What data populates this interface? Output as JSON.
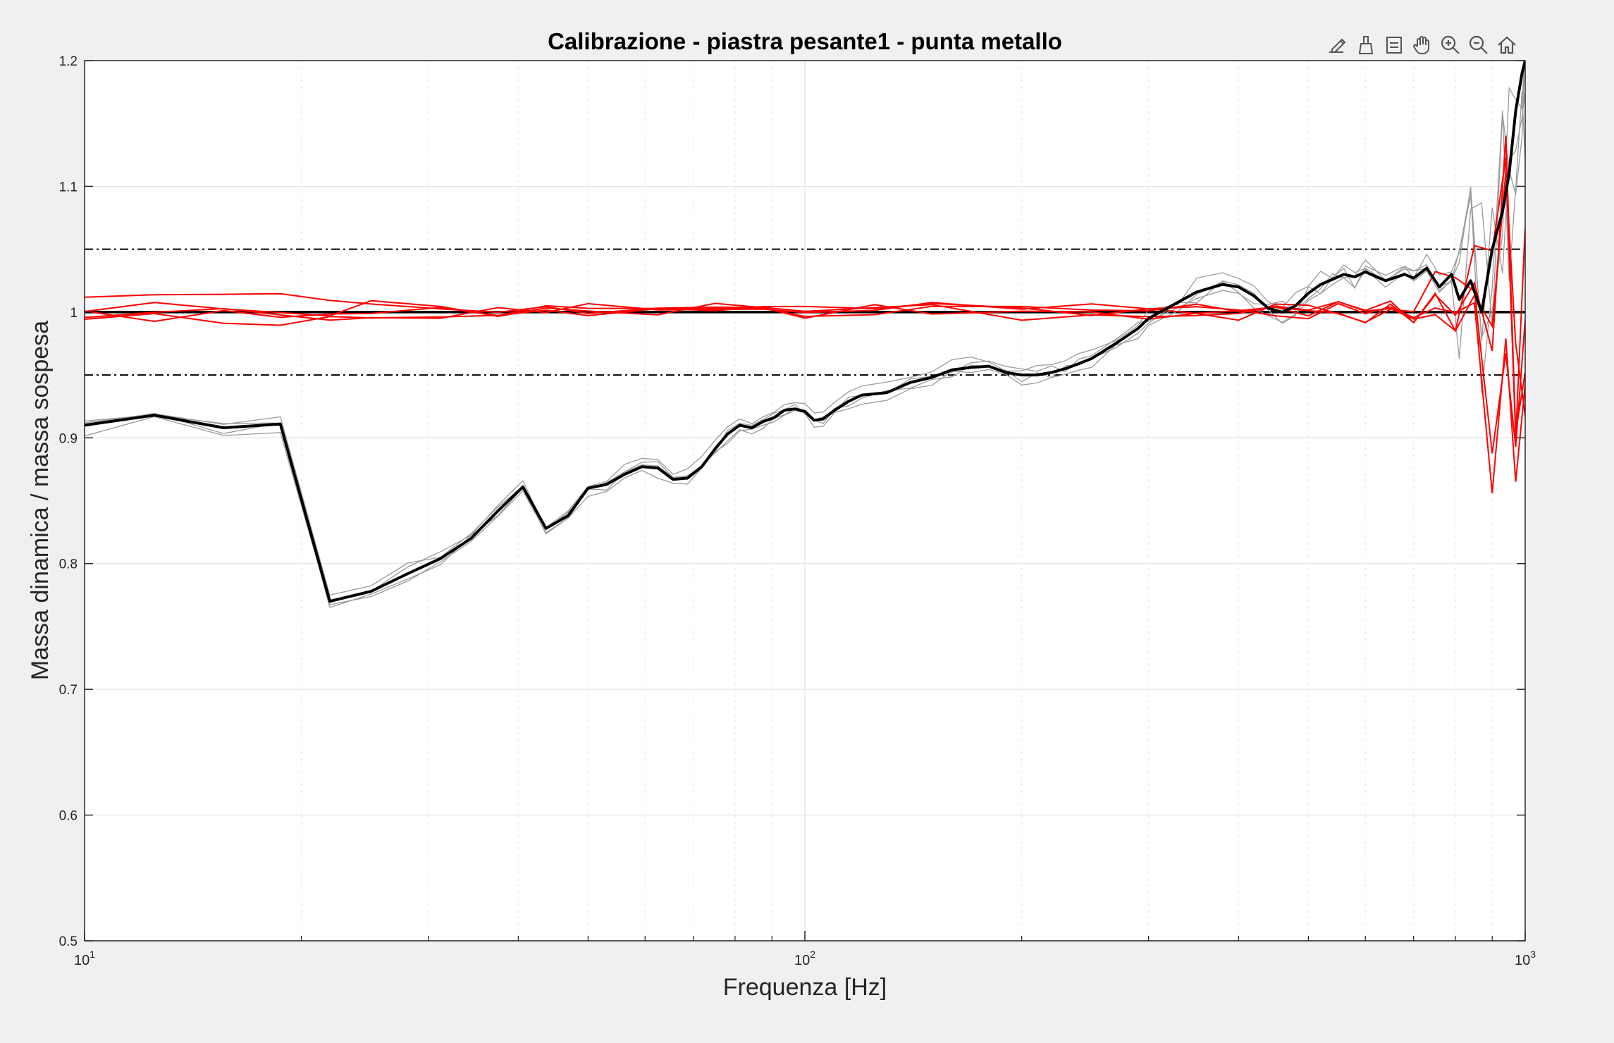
{
  "toolbar": {
    "tools": [
      {
        "name": "export-icon"
      },
      {
        "name": "brush-icon"
      },
      {
        "name": "datatip-icon"
      },
      {
        "name": "pan-hand-icon"
      },
      {
        "name": "zoom-in-icon"
      },
      {
        "name": "zoom-out-icon"
      },
      {
        "name": "home-icon"
      }
    ]
  },
  "chart_data": {
    "type": "line",
    "title": "Calibrazione - piastra pesante1 - punta metallo",
    "xlabel": "Frequenza [Hz]",
    "ylabel": "Massa dinamica / massa sospesa",
    "xscale": "log",
    "xlim": [
      10,
      1000
    ],
    "ylim": [
      0.5,
      1.2
    ],
    "grid": true,
    "xticks": [
      {
        "base": "10",
        "exp": "1"
      },
      {
        "base": "10",
        "exp": "2"
      },
      {
        "base": "10",
        "exp": "3"
      }
    ],
    "yticks": [
      "0.5",
      "0.6",
      "0.7",
      "0.8",
      "0.9",
      "1",
      "1.1",
      "1.2"
    ],
    "colors": {
      "mean": "#000000",
      "individual": "#9a9a9a",
      "corrected": "#ff0000",
      "reference": "#000000"
    },
    "reference_lines": [
      {
        "y": 1.0,
        "style": "solid"
      },
      {
        "y": 1.05,
        "style": "dashdot"
      },
      {
        "y": 0.95,
        "style": "dashdot"
      }
    ],
    "series": [
      {
        "role": "mean-measured",
        "color": "#000000",
        "x": [
          10,
          12.5,
          15.6,
          18.7,
          21.9,
          25,
          28.1,
          31.2,
          34.4,
          37.5,
          40.6,
          43.7,
          46.9,
          50,
          53.1,
          56.2,
          59.4,
          62.5,
          65.6,
          68.7,
          71.9,
          75,
          78.1,
          81.2,
          84.4,
          87.5,
          90.6,
          93.7,
          96.9,
          100,
          103,
          106,
          110,
          115,
          120,
          130,
          140,
          150,
          160,
          170,
          180,
          190,
          200,
          210,
          220,
          230,
          240,
          250,
          270,
          290,
          300,
          330,
          350,
          380,
          400,
          420,
          440,
          460,
          480,
          500,
          520,
          540,
          560,
          580,
          600,
          640,
          680,
          700,
          730,
          760,
          790,
          810,
          840,
          870,
          900,
          930,
          950,
          970,
          990,
          1000
        ],
        "values": [
          0.91,
          0.918,
          0.908,
          0.911,
          0.77,
          0.778,
          0.792,
          0.804,
          0.82,
          0.842,
          0.861,
          0.828,
          0.838,
          0.86,
          0.863,
          0.871,
          0.877,
          0.876,
          0.867,
          0.868,
          0.877,
          0.891,
          0.903,
          0.91,
          0.908,
          0.913,
          0.916,
          0.922,
          0.923,
          0.921,
          0.914,
          0.915,
          0.922,
          0.929,
          0.934,
          0.936,
          0.944,
          0.948,
          0.954,
          0.956,
          0.957,
          0.952,
          0.95,
          0.95,
          0.952,
          0.955,
          0.959,
          0.963,
          0.975,
          0.987,
          0.995,
          1.008,
          1.016,
          1.022,
          1.02,
          1.013,
          1.003,
          1.0,
          1.005,
          1.015,
          1.022,
          1.026,
          1.03,
          1.028,
          1.032,
          1.025,
          1.03,
          1.027,
          1.035,
          1.02,
          1.03,
          1.01,
          1.025,
          1.0,
          1.05,
          1.08,
          1.11,
          1.16,
          1.19,
          1.2
        ]
      },
      {
        "role": "corrected",
        "color": "#ff0000",
        "x": [
          10,
          12.5,
          15.6,
          18.7,
          21.9,
          25,
          31.2,
          37.5,
          43.7,
          50,
          62.5,
          75,
          87.5,
          100,
          125,
          150,
          200,
          250,
          300,
          350,
          400,
          450,
          500,
          550,
          600,
          650,
          700,
          750,
          800,
          850,
          900,
          940,
          970,
          1000
        ],
        "values": [
          1.0,
          1.002,
          1.003,
          1.001,
          0.999,
          1.001,
          1.0,
          1.002,
          1.0,
          1.003,
          0.999,
          1.002,
          1.0,
          1.001,
          1.0,
          1.002,
          0.999,
          1.001,
          1.0,
          1.003,
          0.998,
          1.001,
          1.0,
          1.004,
          0.997,
          1.005,
          0.995,
          1.01,
          1.0,
          1.03,
          0.96,
          1.08,
          0.9,
          0.98
        ]
      }
    ]
  }
}
